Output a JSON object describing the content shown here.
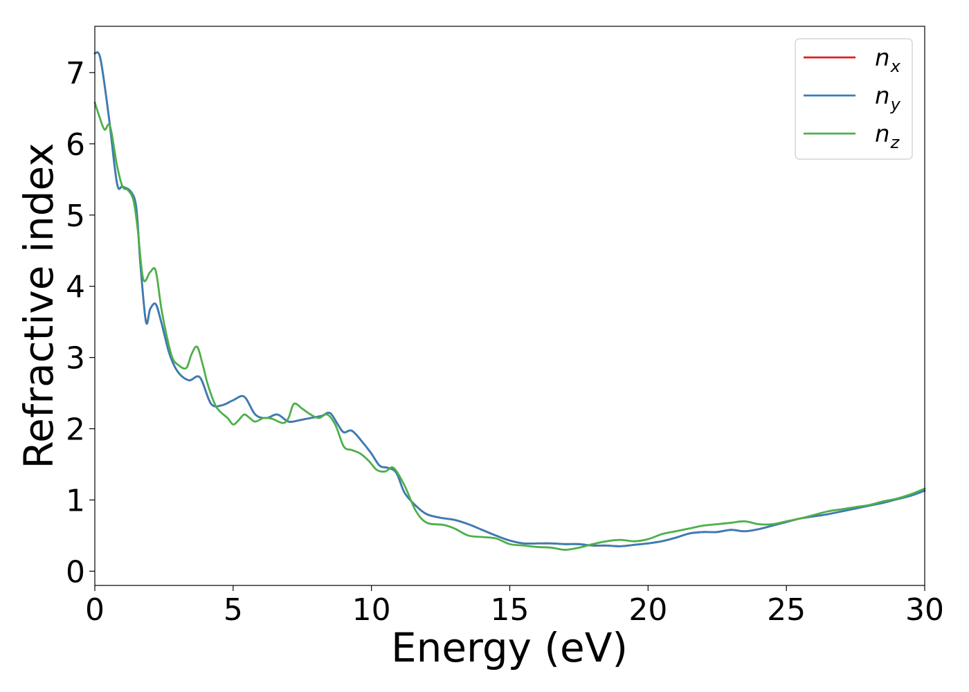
{
  "chart_data": {
    "type": "line",
    "xlabel": "Energy (eV)",
    "ylabel": "Refractive index",
    "xlim": [
      0,
      30
    ],
    "ylim": [
      -0.2,
      7.65
    ],
    "xticks": [
      0,
      5,
      10,
      15,
      20,
      25,
      30
    ],
    "yticks": [
      0,
      1,
      2,
      3,
      4,
      5,
      6,
      7
    ],
    "grid": false,
    "legend_position": "top-right",
    "series": [
      {
        "name": "n_x",
        "label_main": "n",
        "label_sub": "x",
        "color": "#e41a1c",
        "x": [
          0,
          0.2,
          0.5,
          0.8,
          1.0,
          1.3,
          1.5,
          1.65,
          1.85,
          2.0,
          2.2,
          2.4,
          2.7,
          3.0,
          3.4,
          3.8,
          4.2,
          4.6,
          5.0,
          5.4,
          5.8,
          6.2,
          6.6,
          7.0,
          7.4,
          7.8,
          8.2,
          8.5,
          8.8,
          9.0,
          9.3,
          9.7,
          10.0,
          10.3,
          10.6,
          10.9,
          11.2,
          11.6,
          12.0,
          12.5,
          13.0,
          13.5,
          14.0,
          14.5,
          15.0,
          15.5,
          16.0,
          16.5,
          17.0,
          17.5,
          18.0,
          18.5,
          19.0,
          19.5,
          20.0,
          20.5,
          21.0,
          21.5,
          22.0,
          22.5,
          23.0,
          23.5,
          24.0,
          24.5,
          25.0,
          25.5,
          26.0,
          26.5,
          27.0,
          27.5,
          28.0,
          28.5,
          29.0,
          29.5,
          30.0
        ],
        "y": [
          7.27,
          7.2,
          6.4,
          5.45,
          5.4,
          5.33,
          5.1,
          4.3,
          3.5,
          3.68,
          3.75,
          3.5,
          3.05,
          2.8,
          2.68,
          2.72,
          2.35,
          2.33,
          2.4,
          2.45,
          2.2,
          2.15,
          2.2,
          2.1,
          2.12,
          2.15,
          2.18,
          2.22,
          2.05,
          1.95,
          1.97,
          1.8,
          1.65,
          1.48,
          1.45,
          1.38,
          1.1,
          0.92,
          0.8,
          0.75,
          0.72,
          0.66,
          0.58,
          0.5,
          0.43,
          0.39,
          0.39,
          0.39,
          0.38,
          0.38,
          0.36,
          0.36,
          0.35,
          0.37,
          0.39,
          0.42,
          0.47,
          0.53,
          0.55,
          0.55,
          0.58,
          0.56,
          0.59,
          0.64,
          0.69,
          0.74,
          0.77,
          0.8,
          0.84,
          0.88,
          0.92,
          0.96,
          1.01,
          1.06,
          1.13
        ]
      },
      {
        "name": "n_y",
        "label_main": "n",
        "label_sub": "y",
        "color": "#377eb8",
        "x": [
          0,
          0.2,
          0.5,
          0.8,
          1.0,
          1.3,
          1.5,
          1.65,
          1.85,
          2.0,
          2.2,
          2.4,
          2.7,
          3.0,
          3.4,
          3.8,
          4.2,
          4.6,
          5.0,
          5.4,
          5.8,
          6.2,
          6.6,
          7.0,
          7.4,
          7.8,
          8.2,
          8.5,
          8.8,
          9.0,
          9.3,
          9.7,
          10.0,
          10.3,
          10.6,
          10.9,
          11.2,
          11.6,
          12.0,
          12.5,
          13.0,
          13.5,
          14.0,
          14.5,
          15.0,
          15.5,
          16.0,
          16.5,
          17.0,
          17.5,
          18.0,
          18.5,
          19.0,
          19.5,
          20.0,
          20.5,
          21.0,
          21.5,
          22.0,
          22.5,
          23.0,
          23.5,
          24.0,
          24.5,
          25.0,
          25.5,
          26.0,
          26.5,
          27.0,
          27.5,
          28.0,
          28.5,
          29.0,
          29.5,
          30.0
        ],
        "y": [
          7.27,
          7.2,
          6.4,
          5.45,
          5.4,
          5.33,
          5.1,
          4.3,
          3.5,
          3.68,
          3.75,
          3.5,
          3.05,
          2.8,
          2.68,
          2.72,
          2.35,
          2.33,
          2.4,
          2.45,
          2.2,
          2.15,
          2.2,
          2.1,
          2.12,
          2.15,
          2.18,
          2.22,
          2.05,
          1.95,
          1.97,
          1.8,
          1.65,
          1.48,
          1.45,
          1.38,
          1.1,
          0.92,
          0.8,
          0.75,
          0.72,
          0.66,
          0.58,
          0.5,
          0.43,
          0.39,
          0.39,
          0.39,
          0.38,
          0.38,
          0.36,
          0.36,
          0.35,
          0.37,
          0.39,
          0.42,
          0.47,
          0.53,
          0.55,
          0.55,
          0.58,
          0.56,
          0.59,
          0.64,
          0.69,
          0.74,
          0.77,
          0.8,
          0.84,
          0.88,
          0.92,
          0.96,
          1.01,
          1.06,
          1.13
        ]
      },
      {
        "name": "n_z",
        "label_main": "n",
        "label_sub": "z",
        "color": "#4daf4a",
        "x": [
          0,
          0.15,
          0.35,
          0.55,
          0.8,
          1.0,
          1.2,
          1.4,
          1.55,
          1.75,
          2.0,
          2.2,
          2.4,
          2.6,
          2.8,
          3.0,
          3.3,
          3.5,
          3.7,
          3.9,
          4.1,
          4.4,
          4.8,
          5.0,
          5.2,
          5.4,
          5.6,
          5.8,
          6.1,
          6.4,
          6.8,
          7.0,
          7.2,
          7.5,
          7.8,
          8.1,
          8.4,
          8.7,
          9.0,
          9.3,
          9.6,
          9.9,
          10.2,
          10.5,
          10.8,
          11.2,
          11.6,
          12.0,
          12.6,
          13.0,
          13.5,
          14.0,
          14.5,
          15.0,
          15.5,
          16.0,
          16.5,
          17.0,
          17.5,
          18.0,
          18.5,
          19.0,
          19.5,
          20.0,
          20.5,
          21.0,
          21.5,
          22.0,
          22.5,
          23.0,
          23.5,
          24.0,
          24.5,
          25.0,
          25.5,
          26.0,
          26.5,
          27.0,
          27.5,
          28.0,
          28.5,
          29.0,
          29.5,
          30.0
        ],
        "y": [
          6.58,
          6.4,
          6.2,
          6.25,
          5.7,
          5.4,
          5.35,
          5.2,
          4.8,
          4.1,
          4.2,
          4.22,
          3.7,
          3.3,
          3.0,
          2.9,
          2.85,
          3.05,
          3.15,
          2.9,
          2.6,
          2.3,
          2.15,
          2.06,
          2.12,
          2.2,
          2.15,
          2.1,
          2.15,
          2.14,
          2.08,
          2.15,
          2.35,
          2.28,
          2.2,
          2.15,
          2.2,
          2.05,
          1.75,
          1.7,
          1.65,
          1.55,
          1.42,
          1.4,
          1.45,
          1.2,
          0.85,
          0.68,
          0.65,
          0.6,
          0.5,
          0.48,
          0.46,
          0.38,
          0.36,
          0.34,
          0.33,
          0.3,
          0.33,
          0.38,
          0.42,
          0.44,
          0.42,
          0.45,
          0.52,
          0.56,
          0.6,
          0.64,
          0.66,
          0.68,
          0.7,
          0.66,
          0.66,
          0.7,
          0.74,
          0.79,
          0.84,
          0.87,
          0.9,
          0.93,
          0.98,
          1.02,
          1.08,
          1.16
        ]
      }
    ]
  }
}
